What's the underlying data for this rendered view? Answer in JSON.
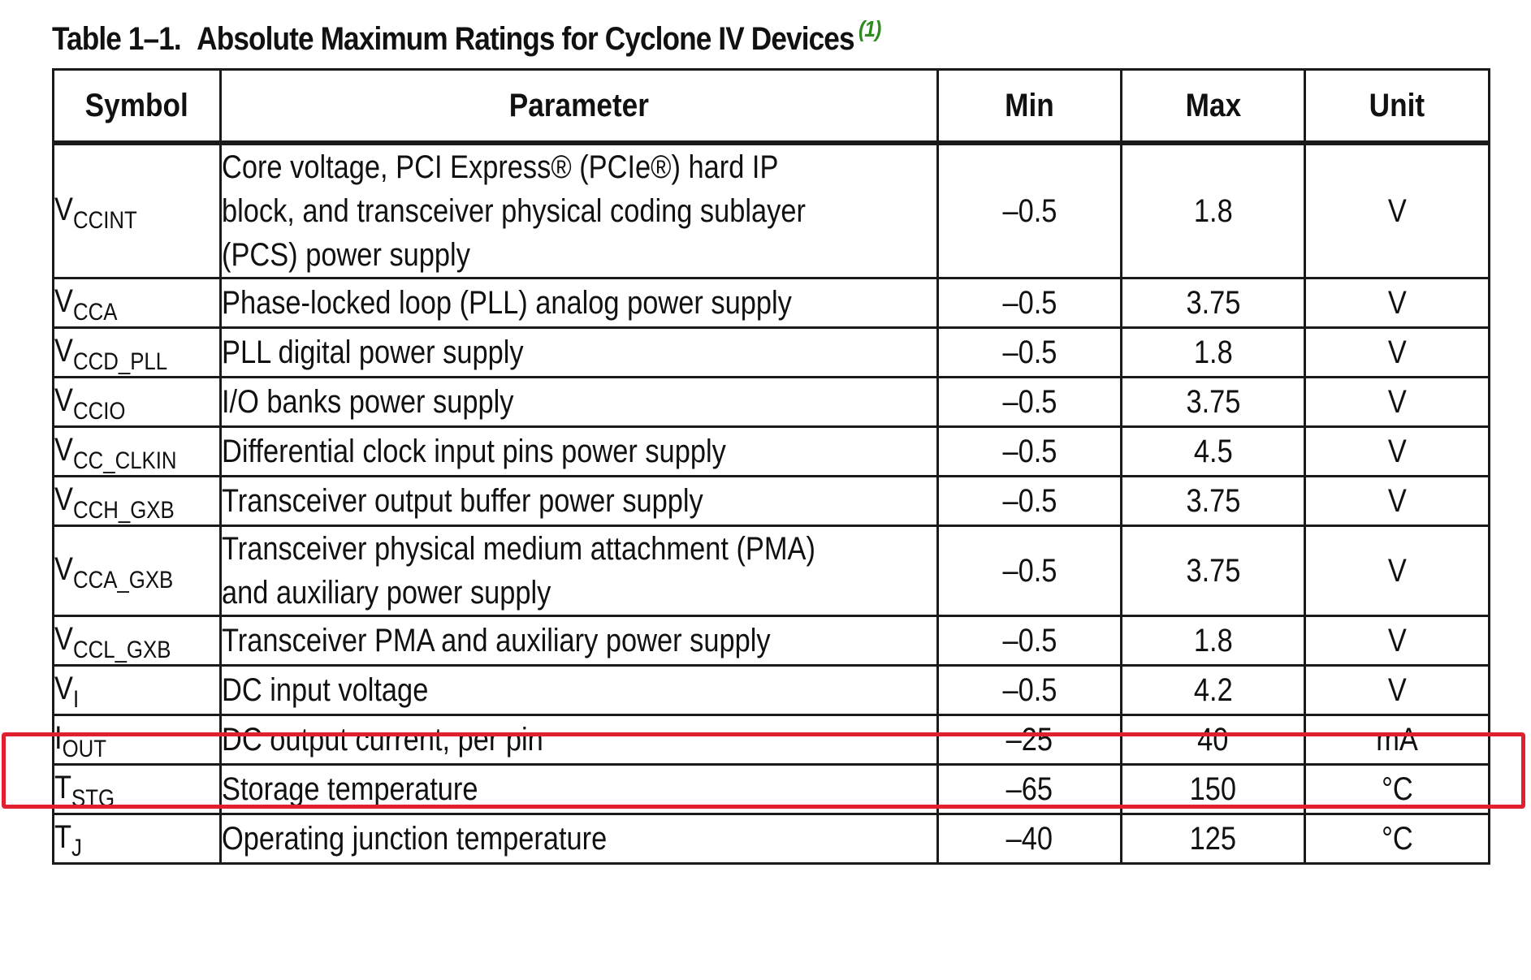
{
  "caption": {
    "number": "Table 1–1.",
    "title": "Absolute Maximum Ratings for Cyclone IV Devices",
    "note": "(1)"
  },
  "headers": {
    "symbol": "Symbol",
    "parameter": "Parameter",
    "min": "Min",
    "max": "Max",
    "unit": "Unit"
  },
  "rows": [
    {
      "sym": "V",
      "sub": "CCINT",
      "param_lines": [
        "Core voltage, PCI Express® (PCIe®) hard IP",
        "block, and transceiver physical coding sublayer",
        "(PCS) power supply"
      ],
      "min": "–0.5",
      "max": "1.8",
      "unit": "V"
    },
    {
      "sym": "V",
      "sub": "CCA",
      "param_lines": [
        "Phase-locked loop (PLL) analog power supply"
      ],
      "min": "–0.5",
      "max": "3.75",
      "unit": "V"
    },
    {
      "sym": "V",
      "sub": "CCD_PLL",
      "param_lines": [
        "PLL digital power supply"
      ],
      "min": "–0.5",
      "max": "1.8",
      "unit": "V"
    },
    {
      "sym": "V",
      "sub": "CCIO",
      "param_lines": [
        "I/O banks power supply"
      ],
      "min": "–0.5",
      "max": "3.75",
      "unit": "V"
    },
    {
      "sym": "V",
      "sub": "CC_CLKIN",
      "param_lines": [
        "Differential clock input pins power supply"
      ],
      "min": "–0.5",
      "max": "4.5",
      "unit": "V"
    },
    {
      "sym": "V",
      "sub": "CCH_GXB",
      "param_lines": [
        "Transceiver output buffer power supply"
      ],
      "min": "–0.5",
      "max": "3.75",
      "unit": "V"
    },
    {
      "sym": "V",
      "sub": "CCA_GXB",
      "param_lines": [
        "Transceiver physical medium attachment (PMA)",
        "and auxiliary power supply"
      ],
      "min": "–0.5",
      "max": "3.75",
      "unit": "V"
    },
    {
      "sym": "V",
      "sub": "CCL_GXB",
      "param_lines": [
        "Transceiver PMA and auxiliary power supply"
      ],
      "min": "–0.5",
      "max": "1.8",
      "unit": "V"
    },
    {
      "sym": "V",
      "sub": "I",
      "param_lines": [
        "DC input voltage"
      ],
      "min": "–0.5",
      "max": "4.2",
      "unit": "V",
      "highlighted": true
    },
    {
      "sym": "I",
      "sub": "OUT",
      "param_lines": [
        "DC output current, per pin"
      ],
      "min": "–25",
      "max": "40",
      "unit": "mA"
    },
    {
      "sym": "T",
      "sub": "STG",
      "param_lines": [
        "Storage temperature"
      ],
      "min": "–65",
      "max": "150",
      "unit": "°C"
    },
    {
      "sym": "T",
      "sub": "J",
      "param_lines": [
        "Operating junction temperature"
      ],
      "min": "–40",
      "max": "125",
      "unit": "°C"
    }
  ],
  "highlight": {
    "color": "#e0202e"
  }
}
